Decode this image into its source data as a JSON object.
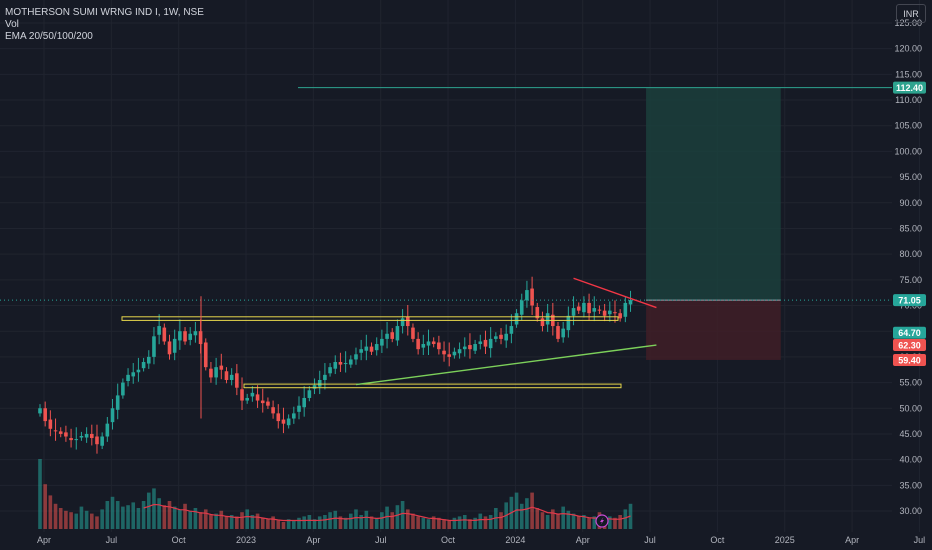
{
  "header": {
    "symbol_line": "MOTHERSON SUMI WRNG IND I, 1W, NSE",
    "volume_label": "Vol",
    "ema_label": "EMA 20/50/100/200",
    "currency": "INR"
  },
  "colors": {
    "background": "#161a25",
    "up": "#26a69a",
    "down": "#ef5350",
    "target_zone": "#1b3f3c",
    "stop_zone": "#3f1f27",
    "trendline_upper": "#f23645",
    "trendline_lower": "#7cd05a",
    "support_box": "#e6d64c",
    "target_line": "#2ea38f",
    "ema": "#e0394a"
  },
  "chart_data": {
    "type": "candlestick",
    "symbol": "MOTHERSON SUMI WRNG IND I",
    "interval": "1W",
    "exchange": "NSE",
    "currency": "INR",
    "y_axis": {
      "min": 27,
      "max": 124,
      "ticks": [
        30,
        35,
        40,
        45,
        50,
        55,
        60,
        65,
        70,
        75,
        80,
        85,
        90,
        95,
        100,
        105,
        110,
        115,
        120,
        125
      ]
    },
    "x_axis_labels": [
      {
        "label": "Apr",
        "week": 0
      },
      {
        "label": "Jul",
        "week": 13
      },
      {
        "label": "Oct",
        "week": 26
      },
      {
        "label": "2023",
        "week": 39
      },
      {
        "label": "Apr",
        "week": 52
      },
      {
        "label": "Jul",
        "week": 65
      },
      {
        "label": "Oct",
        "week": 78
      },
      {
        "label": "2024",
        "week": 91
      },
      {
        "label": "Apr",
        "week": 104
      },
      {
        "label": "Jul",
        "week": 117
      },
      {
        "label": "Oct",
        "week": 130
      },
      {
        "label": "2025",
        "week": 143
      },
      {
        "label": "Apr",
        "week": 156
      },
      {
        "label": "Jul",
        "week": 169
      }
    ],
    "closes": [
      50.0,
      47.5,
      46.0,
      45.5,
      45.0,
      44.5,
      43.8,
      44.0,
      44.6,
      45.0,
      44.2,
      43.0,
      44.5,
      47.0,
      50.0,
      52.5,
      55.0,
      56.5,
      57.0,
      57.5,
      59.0,
      60.0,
      64.0,
      66.0,
      63.0,
      60.5,
      63.5,
      65.0,
      63.0,
      64.5,
      65.0,
      62.5,
      58.0,
      56.0,
      58.0,
      57.5,
      55.5,
      56.5,
      54.0,
      51.5,
      52.0,
      53.0,
      51.5,
      51.0,
      50.5,
      49.0,
      47.5,
      47.0,
      48.0,
      49.0,
      50.5,
      52.0,
      53.5,
      54.5,
      55.5,
      56.5,
      58.0,
      59.0,
      58.5,
      58.8,
      59.5,
      60.5,
      61.5,
      62.0,
      61.0,
      62.5,
      63.5,
      64.5,
      63.5,
      66.0,
      67.5,
      66.0,
      63.5,
      61.5,
      62.5,
      63.0,
      62.5,
      61.5,
      60.5,
      60.0,
      61.0,
      61.5,
      62.0,
      61.5,
      62.5,
      63.0,
      62.0,
      63.5,
      64.0,
      63.5,
      64.5,
      66.0,
      68.5,
      71.0,
      73.0,
      70.0,
      67.5,
      66.0,
      68.5,
      66.0,
      63.5,
      65.5,
      68.0,
      69.5,
      69.0,
      70.5,
      68.5,
      69.5,
      69.0,
      68.0,
      69.0,
      68.5,
      67.5,
      70.5,
      71.05
    ],
    "volumes": [
      5.0,
      3.2,
      2.4,
      1.8,
      1.5,
      1.3,
      1.2,
      1.1,
      1.6,
      1.3,
      1.1,
      0.9,
      1.4,
      2.0,
      2.3,
      2.0,
      1.6,
      1.7,
      1.9,
      1.5,
      2.0,
      2.6,
      2.9,
      2.2,
      1.7,
      2.0,
      1.6,
      1.4,
      1.8,
      1.3,
      1.5,
      1.2,
      1.4,
      1.0,
      1.1,
      1.3,
      0.9,
      1.0,
      0.9,
      1.2,
      1.4,
      1.0,
      1.1,
      0.8,
      0.7,
      0.9,
      0.6,
      0.5,
      0.7,
      0.6,
      0.8,
      0.9,
      1.0,
      0.7,
      0.9,
      1.0,
      1.2,
      1.3,
      0.9,
      0.8,
      1.1,
      1.4,
      1.0,
      1.3,
      0.9,
      0.8,
      1.2,
      1.6,
      1.2,
      1.7,
      2.0,
      1.4,
      1.1,
      0.9,
      0.8,
      0.7,
      0.9,
      0.8,
      0.7,
      0.6,
      0.8,
      0.9,
      1.0,
      0.7,
      0.8,
      1.1,
      0.9,
      1.0,
      1.5,
      1.2,
      1.9,
      2.3,
      2.6,
      1.8,
      2.2,
      2.6,
      1.5,
      1.2,
      1.0,
      1.4,
      1.1,
      1.6,
      1.3,
      1.1,
      0.9,
      1.0,
      0.8,
      0.9,
      1.2,
      0.7,
      0.9,
      0.8,
      1.0,
      1.4,
      1.8
    ],
    "ema_volume": 0.9,
    "annotations": {
      "target_price": 112.4,
      "entry_price": 71.05,
      "stop_price": 59.4,
      "level_64_70": 64.7,
      "level_62_30": 62.3,
      "resistance_zone": [
        67.1,
        67.8
      ],
      "support_zone": [
        54.0,
        54.7
      ],
      "upper_trendline": {
        "from": {
          "week": 103,
          "price": 75.3
        },
        "to": {
          "week": 119,
          "price": 69.6
        }
      },
      "lower_trendline": {
        "from": {
          "week": 61,
          "price": 54.6
        },
        "to": {
          "week": 119,
          "price": 62.3
        }
      },
      "position_box": {
        "from_week": 117,
        "to_week": 143
      }
    },
    "price_tags": [
      {
        "label": "112.40",
        "price": 112.4,
        "color": "#2ea38f"
      },
      {
        "label": "71.05",
        "price": 71.05,
        "color": "#26a69a"
      },
      {
        "label": "64.70",
        "price": 64.7,
        "color": "#26a69a"
      },
      {
        "label": "62.30",
        "price": 62.3,
        "color": "#ef5350"
      },
      {
        "label": "59.40",
        "price": 59.4,
        "color": "#ef5350"
      }
    ]
  }
}
